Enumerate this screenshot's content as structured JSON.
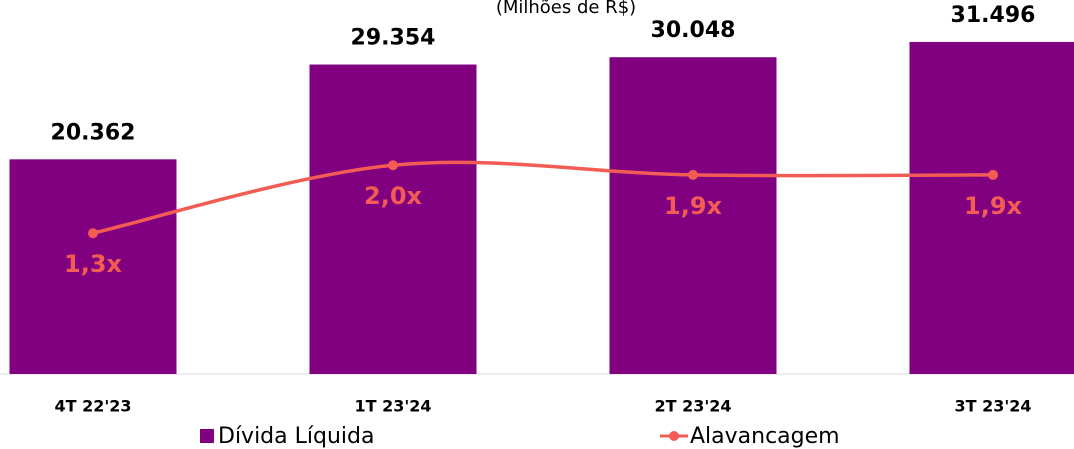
{
  "chart_data": {
    "type": "bar_line",
    "subtitle": "(Milhões de R$)",
    "categories": [
      "4T 22'23",
      "1T 23'24",
      "2T 23'24",
      "3T 23'24"
    ],
    "series": [
      {
        "name": "Dívida Líquida",
        "type": "bar",
        "color": "#800080",
        "values": [
          20362,
          29354,
          30048,
          31496
        ],
        "value_labels": [
          "20.362",
          "29.354",
          "30.048",
          "31.496"
        ]
      },
      {
        "name": "Alavancagem",
        "type": "line",
        "axis": "y2",
        "color": "#f25c54",
        "values": [
          1.3,
          2.0,
          1.9,
          1.9
        ],
        "value_labels": [
          "1,3x",
          "2,0x",
          "1,9x",
          "1,9x"
        ]
      }
    ],
    "ylim": [
      0,
      35000
    ],
    "y2lim": [
      -0.15,
      3.65
    ]
  }
}
